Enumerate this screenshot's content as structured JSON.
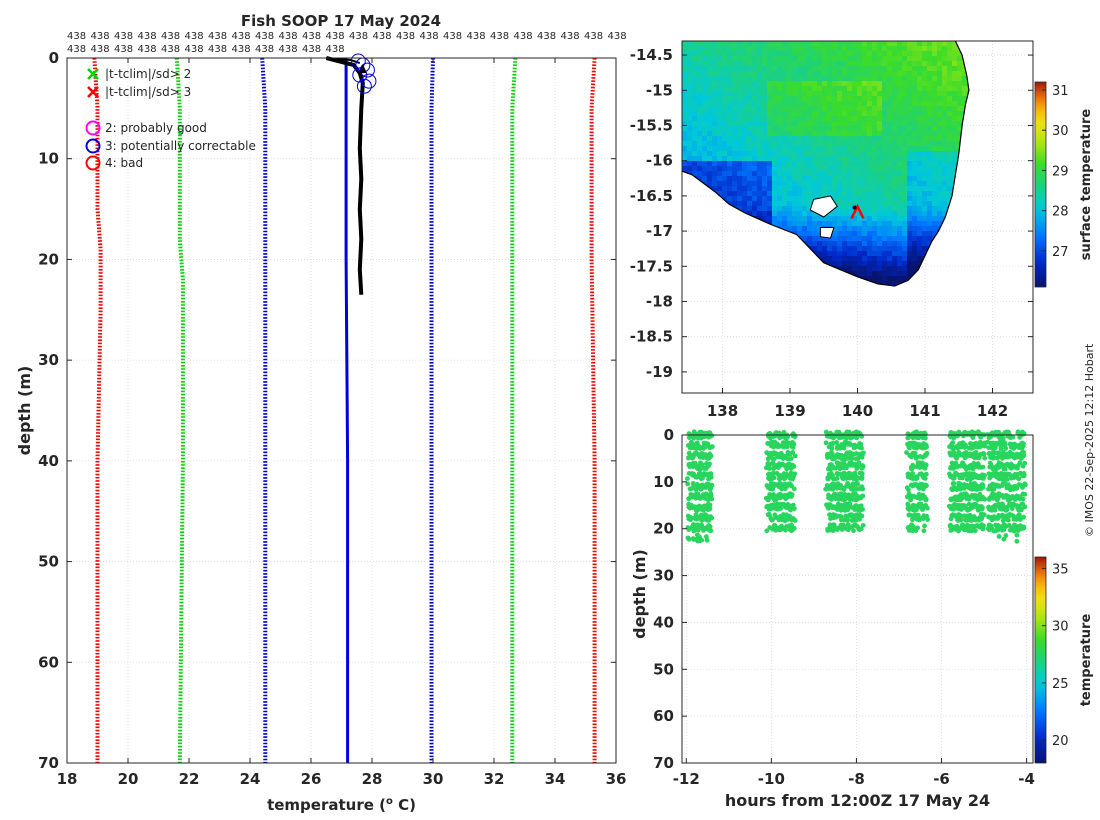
{
  "figure": {
    "title": "Fish SOOP 17 May 2024",
    "credit": "© IMOS 22-Sep-2025 12:12 Hobart",
    "count_label": "438",
    "count_repeats": 36
  },
  "colors": {
    "red": "#ff0000",
    "green": "#00d400",
    "blue": "#0000dd",
    "black": "#000000",
    "magenta": "#ff00ff",
    "grid": "#d9d9d9"
  },
  "legend": {
    "items": [
      {
        "marker": "x",
        "color": "green",
        "label": "|t-tclim|/sd> 2"
      },
      {
        "marker": "x",
        "color": "red",
        "label": "|t-tclim|/sd> 3"
      },
      {
        "marker": "o",
        "color": "magenta",
        "label": "2: probably good"
      },
      {
        "marker": "o",
        "color": "blue",
        "label": "3: potentially correctable"
      },
      {
        "marker": "o",
        "color": "red",
        "label": "4: bad"
      }
    ]
  },
  "chart_data": [
    {
      "id": "profile",
      "type": "line",
      "title": "Fish SOOP 17 May 2024",
      "xlabel": "temperature (",
      "xlabel_sup": "o",
      "xlabel_tail": " C)",
      "ylabel": "depth (m)",
      "xlim": [
        18,
        36
      ],
      "ylim": [
        70,
        0
      ],
      "xticks": [
        18,
        20,
        22,
        24,
        26,
        28,
        30,
        32,
        34,
        36
      ],
      "yticks": [
        0,
        10,
        20,
        30,
        40,
        50,
        60,
        70
      ],
      "grid": true,
      "series": [
        {
          "name": "climatology -3sd",
          "color": "red",
          "style": "dotted",
          "points": [
            [
              18.9,
              0
            ],
            [
              19.0,
              5
            ],
            [
              19.0,
              15
            ],
            [
              19.1,
              19
            ],
            [
              19.1,
              25
            ],
            [
              19.0,
              40
            ],
            [
              19.0,
              55
            ],
            [
              19.0,
              70
            ]
          ]
        },
        {
          "name": "climatology -2sd",
          "color": "green",
          "style": "dotted",
          "points": [
            [
              21.6,
              0
            ],
            [
              21.7,
              5
            ],
            [
              21.7,
              12
            ],
            [
              21.7,
              18
            ],
            [
              21.8,
              22
            ],
            [
              21.8,
              40
            ],
            [
              21.7,
              70
            ]
          ]
        },
        {
          "name": "climatology -1sd",
          "color": "blue",
          "style": "dotted",
          "points": [
            [
              24.4,
              0
            ],
            [
              24.5,
              5
            ],
            [
              24.5,
              18
            ],
            [
              24.5,
              30
            ],
            [
              24.5,
              50
            ],
            [
              24.5,
              70
            ]
          ]
        },
        {
          "name": "climatology mean",
          "color": "blue",
          "style": "solid",
          "points": [
            [
              27.15,
              0
            ],
            [
              27.15,
              10
            ],
            [
              27.15,
              20
            ],
            [
              27.2,
              40
            ],
            [
              27.2,
              70
            ]
          ]
        },
        {
          "name": "climatology +1sd",
          "color": "blue",
          "style": "dotted",
          "points": [
            [
              30.0,
              0
            ],
            [
              29.95,
              5
            ],
            [
              29.95,
              20
            ],
            [
              29.95,
              40
            ],
            [
              29.95,
              70
            ]
          ]
        },
        {
          "name": "climatology +2sd",
          "color": "green",
          "style": "dotted",
          "points": [
            [
              32.7,
              0
            ],
            [
              32.6,
              5
            ],
            [
              32.6,
              20
            ],
            [
              32.6,
              40
            ],
            [
              32.6,
              70
            ]
          ]
        },
        {
          "name": "climatology +3sd",
          "color": "red",
          "style": "dotted",
          "points": [
            [
              35.3,
              0
            ],
            [
              35.2,
              5
            ],
            [
              35.2,
              20
            ],
            [
              35.3,
              40
            ],
            [
              35.3,
              70
            ]
          ]
        },
        {
          "name": "observed profile",
          "color": "black",
          "style": "thick",
          "points": [
            [
              26.5,
              0
            ],
            [
              27.4,
              0.7
            ],
            [
              27.6,
              1.5
            ],
            [
              27.7,
              2.5
            ],
            [
              27.65,
              5
            ],
            [
              27.6,
              9
            ],
            [
              27.65,
              12
            ],
            [
              27.6,
              15
            ],
            [
              27.65,
              18
            ],
            [
              27.6,
              21
            ],
            [
              27.65,
              23.5
            ]
          ]
        }
      ],
      "flag_circles": [
        [
          27.55,
          0.3
        ],
        [
          27.7,
          0.7
        ],
        [
          27.85,
          1.2
        ],
        [
          27.6,
          1.7
        ],
        [
          27.9,
          2.3
        ],
        [
          27.75,
          2.8
        ]
      ],
      "arrow_at": [
        27.7,
        1.2
      ]
    },
    {
      "id": "sst_map",
      "type": "heatmap",
      "xlim": [
        137.4,
        142.6
      ],
      "ylim": [
        -19.3,
        -14.3
      ],
      "xticks": [
        138,
        139,
        140,
        141,
        142
      ],
      "yticks": [
        -14.5,
        -15,
        -15.5,
        -16,
        -16.5,
        -17,
        -17.5,
        -18,
        -18.5,
        -19
      ],
      "colorbar_label": "surface temperature",
      "colorbar_range": [
        26.1,
        31.2
      ],
      "colorbar_ticks": [
        27,
        28,
        29,
        30,
        31
      ],
      "ship_position": [
        140.0,
        -16.75
      ]
    },
    {
      "id": "time_depth",
      "type": "scatter",
      "xlabel": "hours from 12:00Z 17 May 24",
      "ylabel": "depth (m)",
      "xlim": [
        -12.1,
        -3.85
      ],
      "ylim": [
        70,
        0
      ],
      "xticks": [
        -12,
        -10,
        -8,
        -6,
        -4
      ],
      "yticks": [
        0,
        10,
        20,
        30,
        40,
        50,
        60,
        70
      ],
      "colorbar_label": "temperature",
      "colorbar_range": [
        18,
        36
      ],
      "colorbar_ticks": [
        20,
        25,
        30,
        35
      ],
      "sample_temperature": 27.6,
      "blocks": [
        {
          "t_start": -11.95,
          "t_end": -11.4,
          "max_depth": 23.5
        },
        {
          "t_start": -10.1,
          "t_end": -9.45,
          "max_depth": 21.5
        },
        {
          "t_start": -8.7,
          "t_end": -7.85,
          "max_depth": 21.5
        },
        {
          "t_start": -6.8,
          "t_end": -6.35,
          "max_depth": 21.0
        },
        {
          "t_start": -5.8,
          "t_end": -5.0,
          "max_depth": 22.0
        },
        {
          "t_start": -4.9,
          "t_end": -4.05,
          "max_depth": 22.5
        }
      ]
    }
  ]
}
